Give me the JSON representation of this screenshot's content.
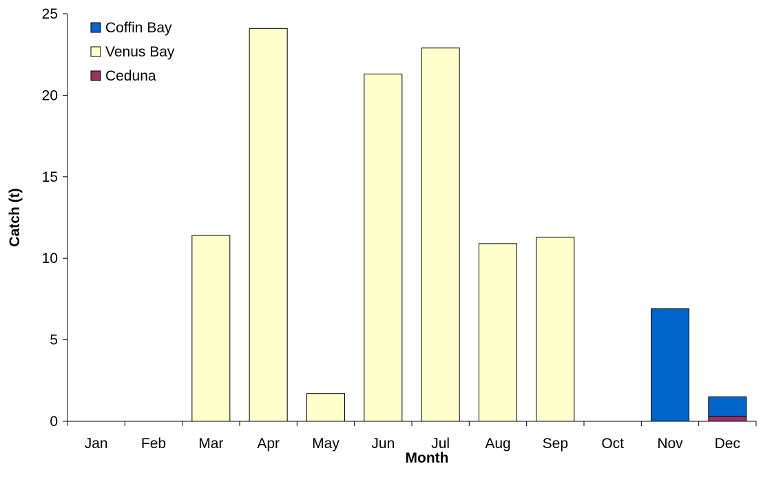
{
  "chart_data": {
    "type": "bar",
    "stacked": true,
    "title": "",
    "xlabel": "Month",
    "ylabel": "Catch (t)",
    "ylim": [
      0,
      25
    ],
    "yticks": [
      0,
      5,
      10,
      15,
      20,
      25
    ],
    "grid": false,
    "legend_position": "top-left",
    "categories": [
      "Jan",
      "Feb",
      "Mar",
      "Apr",
      "May",
      "Jun",
      "Jul",
      "Aug",
      "Sep",
      "Oct",
      "Nov",
      "Dec"
    ],
    "series": [
      {
        "name": "Ceduna",
        "color": "#993366",
        "values": [
          0,
          0,
          0,
          0,
          0,
          0,
          0,
          0,
          0,
          0,
          0,
          0.3
        ]
      },
      {
        "name": "Venus Bay",
        "color": "#FFFFCC",
        "values": [
          0,
          0,
          11.4,
          24.1,
          1.7,
          21.3,
          22.9,
          10.9,
          11.3,
          0,
          0,
          0
        ]
      },
      {
        "name": "Coffin Bay",
        "color": "#0066CC",
        "values": [
          0,
          0,
          0,
          0,
          0,
          0,
          0,
          0,
          0,
          0,
          6.9,
          1.2
        ]
      }
    ],
    "legend_order": [
      "Coffin Bay",
      "Venus Bay",
      "Ceduna"
    ]
  }
}
